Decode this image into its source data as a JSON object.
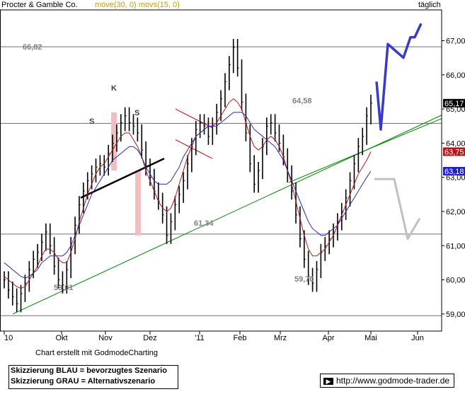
{
  "header": {
    "title": "Procter & Gamble Co.",
    "indicators": "move(30, 0) movs(15, 0)",
    "period": "täglich"
  },
  "footer": {
    "credit": "Chart erstellt mit GodmodeCharting",
    "legend_blue": "Skizzierung BLAU = bevorzugtes Szenario",
    "legend_grey": "Skizzierung GRAU = Alternativszenario",
    "url": "http://www.godmode-trader.de"
  },
  "colors": {
    "price": "#000000",
    "ma30": "#2b2bb0",
    "ma15": "#b01818",
    "trend": "#008000",
    "scenario_blue": "#3a3ac8",
    "scenario_grey": "#c0c0c0",
    "highlight_band": "#f0c0c0",
    "last_price_bg": "#000000",
    "ma15_bg": "#b01818",
    "ma30_bg": "#2020c0",
    "level_label": "#808080"
  },
  "chart_data": {
    "type": "line",
    "ylim": [
      58.5,
      67.9
    ],
    "yticks": [
      "59,00",
      "60,00",
      "61,00",
      "62,00",
      "63,00",
      "64,00",
      "65,00",
      "66,00",
      "67,00"
    ],
    "xticks": [
      "10",
      "Okt",
      "Nov",
      "Dez",
      "'11",
      "Feb",
      "Mrz",
      "Apr",
      "Mai",
      "Jun"
    ],
    "horizontal_levels": [
      {
        "value": 66.82,
        "label": "66,82"
      },
      {
        "value": 64.58,
        "label": "64,58"
      },
      {
        "value": 61.34,
        "label": "61,34"
      },
      {
        "value": 58.95,
        "label": ""
      }
    ],
    "swing_labels": [
      {
        "text": "59,01",
        "x": "Okt"
      },
      {
        "text": "59,70",
        "x": "Mrz"
      },
      {
        "text": "S",
        "x": "Okt"
      },
      {
        "text": "K",
        "x": "Nov"
      },
      {
        "text": "S",
        "x": "Nov"
      }
    ],
    "last_values": [
      {
        "label": "65,17",
        "role": "Last"
      },
      {
        "label": "63,75",
        "role": "movs(15)"
      },
      {
        "label": "63,18",
        "role": "move(30)"
      }
    ],
    "series": [
      {
        "name": "Procter & Gamble Co.",
        "values": [
          60.0,
          59.7,
          59.5,
          59.3,
          59.6,
          59.9,
          60.3,
          60.6,
          60.8,
          61.1,
          61.4,
          61.0,
          60.4,
          60.0,
          59.85,
          60.3,
          61.0,
          61.6,
          62.2,
          62.6,
          62.9,
          63.1,
          63.3,
          63.4,
          63.3,
          63.7,
          64.0,
          64.3,
          64.6,
          64.8,
          64.6,
          64.5,
          64.3,
          63.8,
          63.3,
          63.0,
          62.6,
          62.3,
          61.9,
          61.3,
          61.7,
          62.2,
          62.5,
          62.9,
          63.4,
          63.9,
          64.4,
          64.6,
          64.5,
          64.2,
          64.5,
          64.9,
          65.3,
          65.8,
          66.3,
          66.8,
          66.2,
          65.2,
          64.3,
          63.4,
          62.8,
          63.2,
          63.9,
          64.5,
          64.6,
          64.3,
          64.0,
          63.6,
          63.1,
          62.6,
          61.9,
          61.2,
          60.6,
          60.1,
          59.9,
          60.3,
          60.8,
          61.0,
          61.2,
          61.4,
          61.7,
          62.0,
          62.4,
          62.9,
          63.4,
          63.9,
          64.2,
          64.8,
          65.17
        ]
      },
      {
        "name": "movs(15)",
        "values": [
          60.1,
          60.0,
          59.9,
          59.8,
          59.75,
          59.8,
          60.0,
          60.2,
          60.4,
          60.7,
          60.9,
          60.9,
          60.8,
          60.6,
          60.5,
          60.5,
          60.8,
          61.2,
          61.7,
          62.1,
          62.5,
          62.8,
          63.1,
          63.3,
          63.4,
          63.6,
          63.8,
          64.0,
          64.2,
          64.3,
          64.3,
          64.1,
          63.9,
          63.6,
          63.2,
          62.9,
          62.6,
          62.3,
          62.1,
          62.0,
          62.1,
          62.4,
          62.8,
          63.2,
          63.6,
          63.9,
          64.2,
          64.3,
          64.4,
          64.5,
          64.5,
          64.6,
          64.8,
          65.0,
          65.2,
          65.3,
          65.2,
          65.0,
          64.6,
          64.2,
          63.9,
          63.8,
          63.9,
          64.1,
          64.2,
          64.1,
          63.9,
          63.6,
          63.2,
          62.8,
          62.3,
          61.8,
          61.3,
          60.9,
          60.7,
          60.7,
          60.8,
          60.9,
          61.1,
          61.3,
          61.6,
          61.9,
          62.2,
          62.5,
          62.8,
          63.1,
          63.3,
          63.5,
          63.75
        ]
      },
      {
        "name": "move(30)",
        "values": [
          60.5,
          60.4,
          60.3,
          60.2,
          60.1,
          60.05,
          60.1,
          60.2,
          60.3,
          60.5,
          60.6,
          60.7,
          60.7,
          60.7,
          60.7,
          60.8,
          61.0,
          61.3,
          61.6,
          61.9,
          62.2,
          62.5,
          62.7,
          62.9,
          63.1,
          63.3,
          63.5,
          63.6,
          63.7,
          63.8,
          63.9,
          63.9,
          63.8,
          63.6,
          63.3,
          63.1,
          62.9,
          62.8,
          62.8,
          62.8,
          62.9,
          63.1,
          63.3,
          63.6,
          63.8,
          64.0,
          64.2,
          64.3,
          64.4,
          64.5,
          64.5,
          64.5,
          64.6,
          64.7,
          64.8,
          64.9,
          64.9,
          64.9,
          64.8,
          64.6,
          64.4,
          64.3,
          64.2,
          64.1,
          64.0,
          63.9,
          63.7,
          63.5,
          63.2,
          62.9,
          62.6,
          62.3,
          62.0,
          61.7,
          61.5,
          61.4,
          61.3,
          61.3,
          61.4,
          61.5,
          61.6,
          61.8,
          62.0,
          62.2,
          62.4,
          62.6,
          62.8,
          63.0,
          63.18
        ]
      }
    ],
    "scenario_blue": [
      65.8,
      64.4,
      66.9,
      66.5,
      67.1,
      67.1,
      67.5
    ],
    "scenario_grey": [
      62.95,
      62.95,
      61.2,
      61.8
    ]
  }
}
